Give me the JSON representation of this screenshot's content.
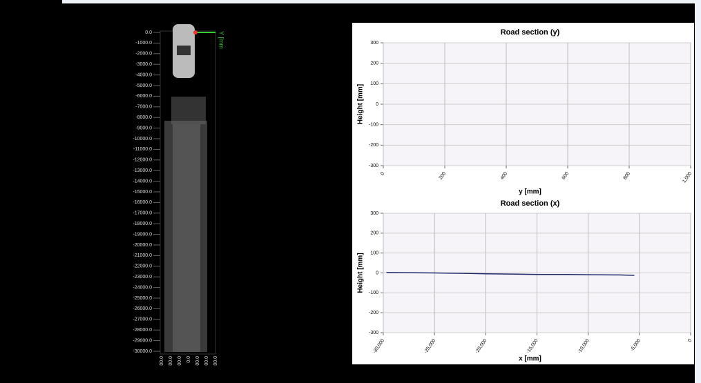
{
  "scan_view": {
    "axis_label": "Y [mm",
    "y_labels": [
      "0.0",
      "-1000.0",
      "-2000.0",
      "-3000.0",
      "-4000.0",
      "-5000.0",
      "-6000.0",
      "-7000.0",
      "-8000.0",
      "-9000.0",
      "-10000.0",
      "-11000.0",
      "-12000.0",
      "-13000.0",
      "-14000.0",
      "-15000.0",
      "-16000.0",
      "-17000.0",
      "-18000.0",
      "-19000.0",
      "-20000.0",
      "-21000.0",
      "-22000.0",
      "-23000.0",
      "-24000.0",
      "-25000.0",
      "-26000.0",
      "-27000.0",
      "-28000.0",
      "-29000.0",
      "-30000.0"
    ],
    "x_labels": [
      "00.0",
      "00.0",
      "00.0",
      "0.0",
      "00.0",
      "00.0",
      "00.0"
    ]
  },
  "chart_data": [
    {
      "type": "line",
      "title": "Road section (y)",
      "xlabel": "y [mm]",
      "ylabel": "Height [mm]",
      "xlim": [
        0,
        1000
      ],
      "xticks": [
        0,
        200,
        400,
        600,
        800,
        {
          "value": 1000,
          "label": "1,000"
        }
      ],
      "ylim": [
        -300,
        300
      ],
      "yticks": [
        -300,
        -200,
        -100,
        0,
        100,
        200,
        300
      ],
      "grid": true,
      "series": []
    },
    {
      "type": "line",
      "title": "Road section (x)",
      "xlabel": "x [mm]",
      "ylabel": "Height [mm]",
      "xlim": [
        -30000,
        0
      ],
      "xticks": [
        {
          "value": -30000,
          "label": "-30,000"
        },
        {
          "value": -25000,
          "label": "-25,000"
        },
        {
          "value": -20000,
          "label": "-20,000"
        },
        {
          "value": -15000,
          "label": "-15,000"
        },
        {
          "value": -10000,
          "label": "-10,000"
        },
        {
          "value": -5000,
          "label": "-5,000"
        },
        0
      ],
      "ylim": [
        -300,
        300
      ],
      "yticks": [
        -300,
        -200,
        -100,
        0,
        100,
        200,
        300
      ],
      "grid": true,
      "series": [
        {
          "color": "#1f2a6b",
          "x": [
            -29700,
            -27000,
            -25000,
            -22000,
            -20000,
            -17000,
            -15000,
            -12000,
            -10000,
            -7000,
            -5500
          ],
          "values": [
            2,
            1,
            0,
            -2,
            -4,
            -6,
            -8,
            -8,
            -9,
            -10,
            -12
          ]
        }
      ]
    }
  ]
}
